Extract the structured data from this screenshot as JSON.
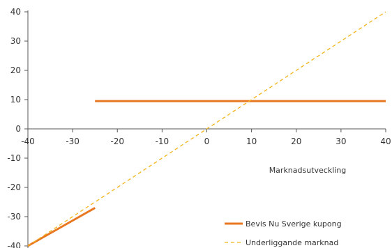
{
  "chart_data": {
    "type": "line",
    "title": "",
    "xlabel": "Marknadsutveckling",
    "ylabel": "",
    "xlim": [
      -40,
      40
    ],
    "ylim": [
      -40,
      40
    ],
    "x_ticks": [
      -40,
      -30,
      -20,
      -10,
      0,
      10,
      20,
      30,
      40
    ],
    "y_ticks": [
      -40,
      -30,
      -20,
      -10,
      0,
      10,
      20,
      30,
      40
    ],
    "x_tick_labels": [
      "-40",
      "-30",
      "-20",
      "-10",
      "0",
      "10",
      "20",
      "30",
      "40"
    ],
    "y_tick_labels": [
      "-40",
      "-30",
      "-20",
      "-10",
      "0",
      "10",
      "20",
      "30",
      "40"
    ],
    "grid": false,
    "legend_position": "bottom-right",
    "series": [
      {
        "name": "Bevis Nu Sverige kupong",
        "color": "#E87722",
        "style": "solid",
        "segments": [
          [
            {
              "x": -40,
              "y": -40
            },
            {
              "x": -25,
              "y": -27
            }
          ],
          [
            {
              "x": -25,
              "y": 9.5
            },
            {
              "x": 40,
              "y": 9.5
            }
          ]
        ]
      },
      {
        "name": "Underliggande marknad",
        "color": "#F2B418",
        "style": "dashed",
        "segments": [
          [
            {
              "x": -40,
              "y": -40
            },
            {
              "x": 40,
              "y": 40
            }
          ]
        ]
      }
    ]
  }
}
